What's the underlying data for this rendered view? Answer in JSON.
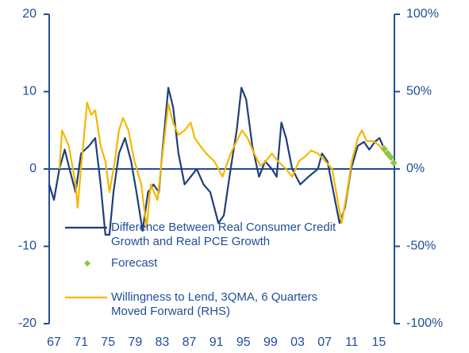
{
  "chart_data": {
    "type": "line",
    "xlim": [
      1966.3,
      2017.3
    ],
    "xticks": [
      {
        "value": 1967,
        "label": "67"
      },
      {
        "value": 1971,
        "label": "71"
      },
      {
        "value": 1975,
        "label": "75"
      },
      {
        "value": 1979,
        "label": "79"
      },
      {
        "value": 1983,
        "label": "83"
      },
      {
        "value": 1987,
        "label": "87"
      },
      {
        "value": 1991,
        "label": "91"
      },
      {
        "value": 1995,
        "label": "95"
      },
      {
        "value": 1999,
        "label": "99"
      },
      {
        "value": 2003,
        "label": "03"
      },
      {
        "value": 2007,
        "label": "07"
      },
      {
        "value": 2011,
        "label": "11"
      },
      {
        "value": 2015,
        "label": "15"
      }
    ],
    "ylim": [
      -20,
      20
    ],
    "yticks": [
      -20,
      -10,
      0,
      10,
      20
    ],
    "y2lim": [
      -100,
      100
    ],
    "y2ticks": [
      {
        "value": -100,
        "label": "-100%"
      },
      {
        "value": -50,
        "label": "-50%"
      },
      {
        "value": 0,
        "label": "0%"
      },
      {
        "value": 50,
        "label": "50%"
      },
      {
        "value": 100,
        "label": "100%"
      }
    ],
    "legend": "lower left",
    "series": [
      {
        "name": "Difference Between Real Consumer Credit Growth and Real PCE Growth",
        "color": "#1f3f7a",
        "x": [
          1966.3,
          1967,
          1967.8,
          1968.6,
          1969.3,
          1970.2,
          1971.0,
          1972.2,
          1973.1,
          1973.9,
          1974.6,
          1975.2,
          1975.8,
          1976.6,
          1977.5,
          1978.4,
          1979.2,
          1980.1,
          1980.9,
          1981.7,
          1982.5,
          1983.1,
          1983.9,
          1984.6,
          1985.4,
          1986.3,
          1987.2,
          1988.1,
          1989.1,
          1990.1,
          1991.3,
          1992.1,
          1993.1,
          1994.0,
          1994.7,
          1995.4,
          1996.3,
          1997.3,
          1998.2,
          1999.2,
          1999.9,
          2000.6,
          2001.3,
          2002.2,
          2003.4,
          2004.6,
          2006.0,
          2006.6,
          2007.4,
          2008.3,
          2009.2,
          2010.0,
          2010.9,
          2011.9,
          2012.8,
          2013.6,
          2014.4,
          2015.1,
          2015.6
        ],
        "values": [
          -2,
          -4,
          0,
          2.5,
          0,
          -3,
          2,
          3,
          4,
          -2,
          -8.5,
          -8.5,
          -3,
          2,
          4,
          1,
          -3,
          -8,
          -3,
          -2,
          -3,
          3,
          10.5,
          8,
          2,
          -2,
          -1,
          0,
          -2,
          -3,
          -7,
          -6,
          0,
          5,
          10.5,
          9,
          3,
          -1,
          1,
          0,
          -1,
          6,
          4,
          0,
          -2,
          -1,
          0,
          2,
          1,
          -3,
          -7,
          -5,
          0,
          3,
          3.5,
          2.5,
          3.5,
          4,
          3
        ]
      },
      {
        "name": "Forecast",
        "color": "#8cc63f",
        "marker": "diamond",
        "x": [
          2015.8,
          2016.3,
          2016.8,
          2017.2
        ],
        "values": [
          2.6,
          2.0,
          1.5,
          0.8
        ]
      },
      {
        "name": "Willingness to Lend, 3QMA, 6 Quarters Moved Forward (RHS)",
        "color": "#f5b800",
        "axis": "y2",
        "x": [
          1967.8,
          1968.2,
          1969.2,
          1970.2,
          1970.5,
          1971.1,
          1971.9,
          1972.5,
          1973.1,
          1973.9,
          1974.6,
          1975.2,
          1976.0,
          1976.6,
          1977.2,
          1978.0,
          1978.9,
          1979.9,
          1980.7,
          1981.3,
          1982.3,
          1982.8,
          1983.9,
          1984.6,
          1985.4,
          1986.3,
          1987.2,
          1987.8,
          1988.6,
          1989.5,
          1990.7,
          1991.9,
          1993.1,
          1994.0,
          1994.8,
          1995.6,
          1996.6,
          1997.5,
          1998.3,
          1999.2,
          2000.1,
          2001.3,
          2002.2,
          2003.2,
          2004.1,
          2005.0,
          2006.0,
          2007.1,
          2008.1,
          2008.9,
          2009.5,
          2010.3,
          2011.0,
          2011.9,
          2012.5,
          2013.2,
          2014.2,
          2015.1,
          2016.0,
          2016.5
        ],
        "values": [
          0,
          25,
          15,
          -10,
          -25,
          5,
          43,
          35,
          38,
          15,
          5,
          -15,
          5,
          25,
          33,
          25,
          5,
          -10,
          -38,
          -10,
          -20,
          0,
          42,
          30,
          22,
          25,
          30,
          20,
          15,
          10,
          5,
          -5,
          10,
          18,
          25,
          20,
          10,
          2,
          5,
          10,
          5,
          0,
          -5,
          5,
          8,
          12,
          10,
          5,
          0,
          -20,
          -35,
          -15,
          5,
          20,
          25,
          18,
          18,
          15,
          10,
          8
        ]
      }
    ]
  }
}
